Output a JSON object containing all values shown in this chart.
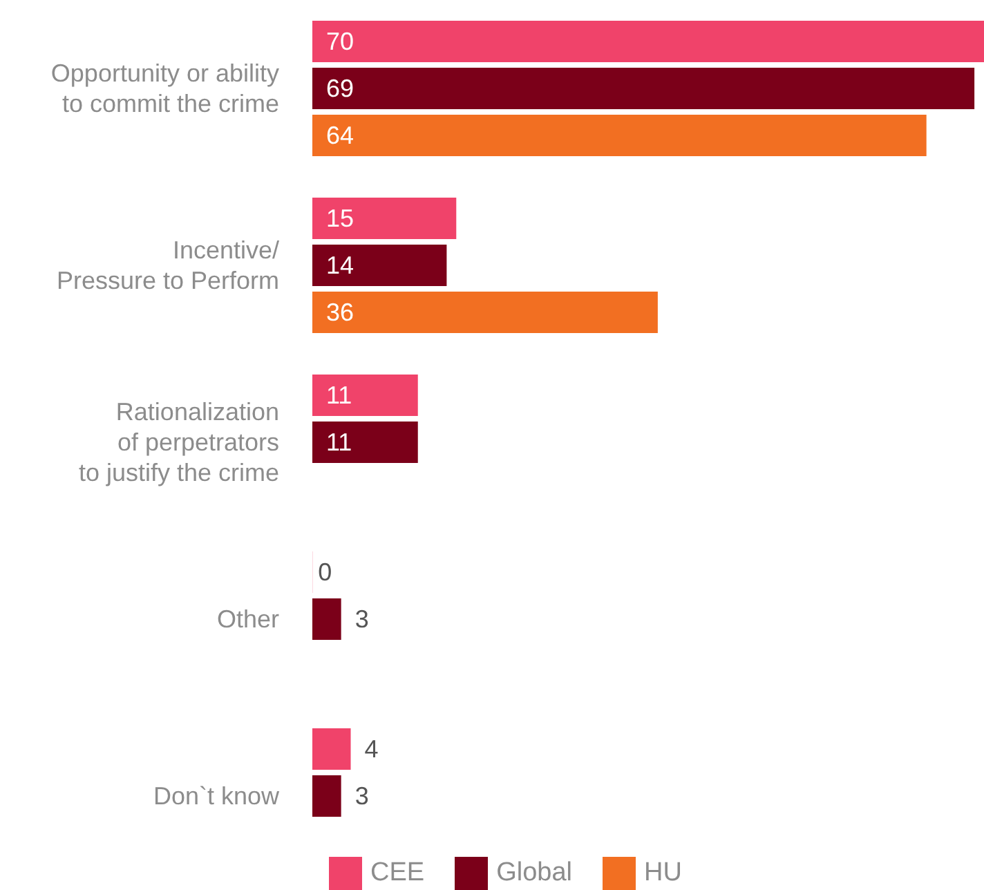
{
  "chart_data": {
    "type": "bar",
    "orientation": "horizontal",
    "categories": [
      "Opportunity or ability\nto commit the crime",
      "Incentive/\nPressure to Perform",
      "Rationalization\nof perpetrators\nto justify the crime",
      "Other",
      "Don`t know"
    ],
    "series": [
      {
        "name": "CEE",
        "color": "#f0436a",
        "values": [
          70,
          15,
          11,
          0,
          4
        ]
      },
      {
        "name": "Global",
        "color": "#7b0019",
        "values": [
          69,
          14,
          11,
          3,
          3
        ]
      },
      {
        "name": "HU",
        "color": "#f26f22",
        "values": [
          64,
          36,
          null,
          null,
          null
        ]
      }
    ],
    "data_labels": true,
    "legend": "bottom",
    "grid": false,
    "tick_labels": "y"
  }
}
